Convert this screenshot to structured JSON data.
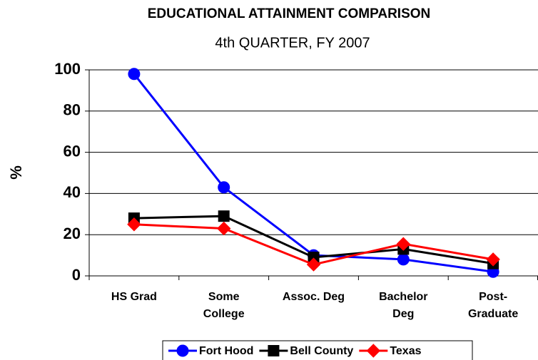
{
  "chart_data": {
    "type": "line",
    "title": "EDUCATIONAL ATTAINMENT COMPARISON",
    "subtitle": "4th QUARTER, FY 2007",
    "y_label": "%",
    "categories": [
      "HS Grad",
      "Some\nCollege",
      "Assoc. Deg",
      "Bachelor\nDeg",
      "Post-\nGraduate"
    ],
    "series": [
      {
        "name": "Fort Hood",
        "color": "#0000ff",
        "marker": "circle",
        "values": [
          98,
          43,
          10,
          8,
          2
        ]
      },
      {
        "name": "Bell County",
        "color": "#000000",
        "marker": "square",
        "values": [
          28,
          29,
          9,
          13,
          6
        ]
      },
      {
        "name": "Texas",
        "color": "#ff0000",
        "marker": "diamond",
        "values": [
          25,
          23,
          5.5,
          15.5,
          8
        ]
      }
    ],
    "ylim": [
      0,
      100
    ],
    "yticks": [
      0,
      20,
      40,
      60,
      80,
      100
    ],
    "grid": true,
    "legend": "bottom"
  }
}
